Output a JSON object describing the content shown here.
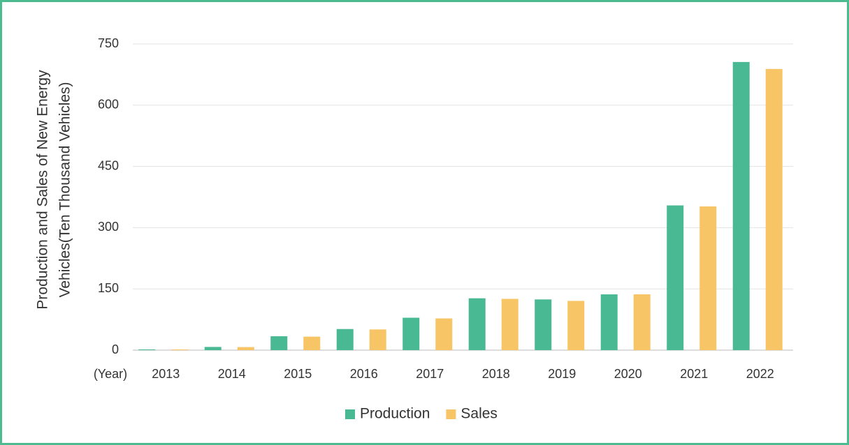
{
  "chart_data": {
    "type": "bar",
    "ylabel": [
      "Production and Sales of New Energy",
      "Vehicles(Ten Thousand Vehicles)"
    ],
    "xlabel": "(Year)",
    "categories": [
      "2013",
      "2014",
      "2015",
      "2016",
      "2017",
      "2018",
      "2019",
      "2020",
      "2021",
      "2022"
    ],
    "series": [
      {
        "name": "Production",
        "color": "#48b992",
        "values": [
          1.75,
          7.85,
          34,
          51.7,
          79.4,
          127,
          124.2,
          136.6,
          354.5,
          705.8
        ]
      },
      {
        "name": "Sales",
        "color": "#f7c566",
        "values": [
          1.76,
          7.48,
          33,
          50.7,
          77.7,
          125.6,
          120.6,
          136.7,
          352.1,
          688.7
        ]
      }
    ],
    "ylim": [
      0,
      750
    ],
    "yticks": [
      0,
      150,
      300,
      450,
      600,
      750
    ],
    "grid": true,
    "legend": "bottom"
  }
}
